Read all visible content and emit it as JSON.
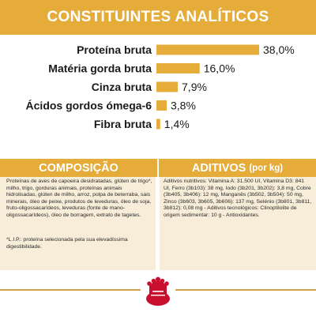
{
  "header": {
    "title": "CONSTITUINTES ANALÍTICOS"
  },
  "chart_data": {
    "type": "bar",
    "orientation": "horizontal",
    "categories": [
      "Proteína bruta",
      "Matéria gorda bruta",
      "Cinza bruta",
      "Ácidos gordos ómega-6",
      "Fibra bruta"
    ],
    "values": [
      38.0,
      16.0,
      7.9,
      3.8,
      1.4
    ],
    "value_labels": [
      "38,0%",
      "16,0%",
      "7,9%",
      "3,8%",
      "1,4%"
    ],
    "unit": "%",
    "bar_color": "#e5ac3a"
  },
  "composition": {
    "title": "COMPOSIÇÃO",
    "text": "Proteínas de aves de capoeira desidratadas, glúten de trigo*, milho, trigo, gorduras animais, proteínas animais hidrolisadas, glúten de milho, arroz, polpa de beterraba, sais minerais, óleo de peixe, produtos de leveduras, óleo de soja, fruto-oligossacarídeos, leveduras (fonte de mano-oligossacarídeos), óleo de borragem, extrato de tagetes.",
    "note": "*L.I.P.: proteína selecionada pela sua elevadíssima digestibilidade."
  },
  "additives": {
    "title": "ADITIVOS",
    "unit": "(por kg)",
    "text": "Aditivos nutritivos: Vitamina A: 31.500 UI, Vitamina D3: 841 UI, Ferro (3b103): 38 mg, Iodo (3b201, 3b202): 3,8 mg, Cobre (3b405, 3b406): 12 mg, Manganês (3b502, 3b504): 50 mg, Zinco (3b603, 3b605, 3b606): 137 mg, Selénio (3b801, 3b811, 3b812): 0,08 mg - Aditivos tecnológicos: Clinoptilolite de origem sedimentar: 10 g - Antioxidantes."
  },
  "colors": {
    "accent": "#e5ac3a",
    "panel_bg": "#f7edd8",
    "logo_red": "#c8102e"
  },
  "icons": {
    "logo": "royal-canin-crown-icon"
  }
}
